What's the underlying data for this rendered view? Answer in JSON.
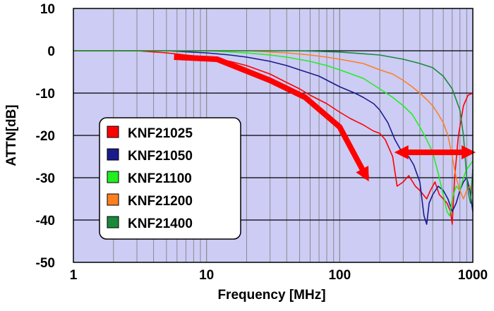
{
  "chart_data": {
    "type": "line",
    "xlabel": "Frequency [MHz]",
    "ylabel": "ATTN[dB]",
    "x_scale": "log",
    "xlim": [
      1,
      1000
    ],
    "ylim": [
      -50,
      10
    ],
    "x_ticks": [
      1,
      10,
      100,
      1000
    ],
    "x_tick_labels": [
      "1",
      "10",
      "100",
      "1000"
    ],
    "y_ticks": [
      10,
      0,
      -10,
      -20,
      -30,
      -40,
      -50
    ],
    "y_tick_labels": [
      "10",
      "0",
      "-10",
      "-20",
      "-30",
      "-40",
      "-50"
    ],
    "grid": true,
    "plot_background": "#ccccf5",
    "legend_position": "left",
    "legend": [
      {
        "name": "KNF21025",
        "color": "#ff0000"
      },
      {
        "name": "KNF21050",
        "color": "#1a1a8c"
      },
      {
        "name": "KNF21100",
        "color": "#22ee22"
      },
      {
        "name": "KNF21200",
        "color": "#ff7f20"
      },
      {
        "name": "KNF21400",
        "color": "#1a8a3a"
      }
    ],
    "series": [
      {
        "color": "#ff0000",
        "x": [
          1,
          3,
          5,
          7,
          10,
          15,
          20,
          30,
          40,
          50,
          60,
          80,
          100,
          120,
          150,
          180,
          200,
          220,
          250,
          270,
          300,
          330,
          370,
          400,
          450,
          480,
          520,
          560,
          600,
          640,
          680,
          700,
          730,
          780,
          850,
          920,
          1000
        ],
        "y": [
          0,
          0,
          -0.5,
          -1,
          -1.5,
          -2.5,
          -3.5,
          -5.5,
          -7.5,
          -9,
          -10.5,
          -12.5,
          -14.5,
          -16,
          -17.5,
          -19,
          -19.5,
          -21,
          -25,
          -32,
          -31,
          -29.5,
          -32,
          -33,
          -35,
          -33,
          -31,
          -34,
          -35,
          -36,
          -38,
          -41,
          -30,
          -20,
          -13,
          -10.5,
          -10
        ]
      },
      {
        "color": "#1a1a8c",
        "x": [
          1,
          5,
          10,
          15,
          20,
          30,
          40,
          50,
          70,
          100,
          130,
          150,
          180,
          200,
          230,
          260,
          300,
          330,
          360,
          400,
          430,
          450,
          470,
          500,
          550,
          600,
          650,
          700,
          750,
          800,
          850,
          900,
          950,
          1000
        ],
        "y": [
          0,
          0,
          -0.5,
          -1,
          -1.5,
          -2.5,
          -3.5,
          -4.5,
          -6,
          -8.5,
          -10,
          -11,
          -12.5,
          -14,
          -17,
          -21,
          -24.5,
          -25,
          -27,
          -31,
          -39,
          -41,
          -36,
          -34,
          -32,
          -33,
          -35,
          -38,
          -36,
          -33,
          -31,
          -30,
          -33,
          -38
        ]
      },
      {
        "color": "#22ee22",
        "x": [
          1,
          10,
          20,
          30,
          40,
          60,
          80,
          100,
          150,
          200,
          250,
          300,
          350,
          400,
          450,
          500,
          550,
          600,
          640,
          670,
          700,
          750,
          800,
          850,
          900,
          950,
          1000
        ],
        "y": [
          0,
          0,
          -0.5,
          -1,
          -1.5,
          -2.5,
          -3.5,
          -4.5,
          -6.5,
          -9,
          -11,
          -13,
          -15,
          -18,
          -21,
          -24,
          -29,
          -34,
          -38,
          -39,
          -35,
          -32,
          -33,
          -30,
          -28,
          -27,
          -26
        ]
      },
      {
        "color": "#ff7f20",
        "x": [
          1,
          20,
          40,
          60,
          80,
          100,
          150,
          200,
          250,
          300,
          350,
          400,
          450,
          500,
          550,
          600,
          650,
          700,
          750,
          800,
          850,
          900,
          950,
          1000
        ],
        "y": [
          0,
          0,
          -0.5,
          -1,
          -1.5,
          -2,
          -3,
          -4.5,
          -5.5,
          -7,
          -8.5,
          -10,
          -11.5,
          -13,
          -15,
          -17,
          -20,
          -25,
          -30,
          -33,
          -35,
          -33,
          -32,
          -34
        ]
      },
      {
        "color": "#1a8a3a",
        "x": [
          1,
          50,
          100,
          150,
          200,
          300,
          400,
          500,
          600,
          700,
          800,
          850,
          880,
          900,
          930,
          960,
          980,
          1000
        ],
        "y": [
          0,
          0,
          -0.3,
          -0.7,
          -1,
          -2,
          -3,
          -4,
          -6,
          -9,
          -14,
          -20,
          -26,
          -30,
          -34,
          -36,
          -32,
          -28
        ]
      }
    ],
    "annotations": [
      {
        "type": "curved-arrow",
        "color": "#ff0000",
        "points": [
          [
            5.7,
            -1.5
          ],
          [
            12,
            -2
          ],
          [
            30,
            -7
          ],
          [
            55,
            -11
          ],
          [
            100,
            -18
          ],
          [
            160,
            -30
          ]
        ]
      },
      {
        "type": "double-arrow",
        "color": "#ff0000",
        "from": [
          270,
          -24
        ],
        "to": [
          1000,
          -24
        ]
      }
    ]
  }
}
